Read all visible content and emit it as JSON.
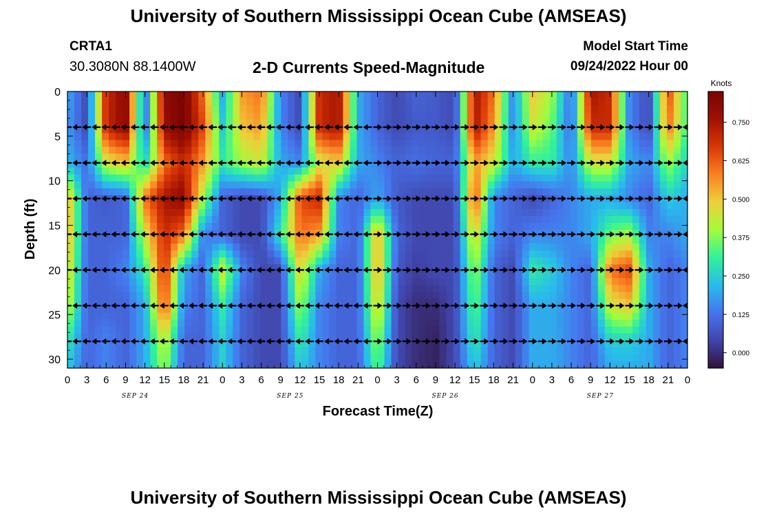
{
  "header": {
    "main_title": "University of Southern Mississippi Ocean Cube (AMSEAS)",
    "station_id": "CRTA1",
    "station_coords": "30.3080N  88.1400W",
    "plot_title": "2-D Currents Speed-Magnitude",
    "model_start_label": "Model Start Time",
    "model_start_value": "09/24/2022 Hour 00"
  },
  "footer": {
    "repeated_title": "University of Southern Mississippi Ocean Cube (AMSEAS)"
  },
  "chart_data": {
    "type": "heatmap",
    "title": "2-D Currents Speed-Magnitude",
    "xlabel": "Forecast Time(Z)",
    "ylabel": "Depth (ft)",
    "x_range_hours": [
      0,
      96
    ],
    "x_tick_labels": [
      "0",
      "3",
      "6",
      "9",
      "12",
      "15",
      "18",
      "21",
      "0",
      "3",
      "6",
      "9",
      "12",
      "15",
      "18",
      "21",
      "0",
      "3",
      "6",
      "9",
      "12",
      "15",
      "18",
      "21",
      "0",
      "3",
      "6",
      "9",
      "12",
      "15",
      "18",
      "21",
      "0"
    ],
    "date_labels": [
      {
        "label": "SEP 24",
        "hour": 10.5
      },
      {
        "label": "SEP 25",
        "hour": 34.5
      },
      {
        "label": "SEP 26",
        "hour": 58.5
      },
      {
        "label": "SEP 27",
        "hour": 82.5
      }
    ],
    "y_range_ft": [
      0,
      31
    ],
    "y_tick_labels": [
      "0",
      "5",
      "10",
      "15",
      "20",
      "25",
      "30"
    ],
    "y_ticks": [
      0,
      5,
      10,
      15,
      20,
      25,
      30
    ],
    "colorbar": {
      "title": "Knots",
      "range": [
        -0.05,
        0.85
      ],
      "tick_labels": [
        "0.750",
        "0.625",
        "0.500",
        "0.375",
        "0.250",
        "0.125",
        "0.000"
      ],
      "tick_values": [
        0.75,
        0.625,
        0.5,
        0.375,
        0.25,
        0.125,
        0.0
      ]
    },
    "speed_hours": [
      0,
      3,
      6,
      9,
      12,
      15,
      18,
      21,
      24,
      27,
      30,
      33,
      36,
      39,
      42,
      45,
      48,
      51,
      54,
      57,
      60,
      63,
      66,
      69,
      72,
      75,
      78,
      81,
      84,
      87,
      90,
      93,
      96
    ],
    "speed_depths": [
      0,
      4,
      8,
      12,
      16,
      20,
      24,
      28,
      31
    ],
    "speed_knots": [
      [
        0.2,
        0.05,
        0.7,
        0.8,
        0.1,
        0.8,
        0.85,
        0.6,
        0.2,
        0.55,
        0.6,
        0.15,
        0.05,
        0.7,
        0.75,
        0.2,
        0.1,
        0.05,
        0.1,
        0.08,
        0.05,
        0.75,
        0.6,
        0.15,
        0.5,
        0.4,
        0.1,
        0.75,
        0.7,
        0.15,
        0.05,
        0.65,
        0.3
      ],
      [
        0.18,
        0.05,
        0.7,
        0.8,
        0.1,
        0.78,
        0.85,
        0.65,
        0.25,
        0.5,
        0.55,
        0.15,
        0.05,
        0.7,
        0.75,
        0.2,
        0.1,
        0.05,
        0.08,
        0.08,
        0.05,
        0.75,
        0.55,
        0.15,
        0.45,
        0.35,
        0.1,
        0.7,
        0.7,
        0.15,
        0.05,
        0.6,
        0.3
      ],
      [
        0.22,
        0.12,
        0.45,
        0.5,
        0.25,
        0.6,
        0.7,
        0.55,
        0.3,
        0.4,
        0.45,
        0.2,
        0.15,
        0.45,
        0.5,
        0.2,
        0.15,
        0.1,
        0.12,
        0.1,
        0.1,
        0.55,
        0.45,
        0.2,
        0.3,
        0.3,
        0.15,
        0.45,
        0.45,
        0.2,
        0.15,
        0.4,
        0.25
      ],
      [
        0.55,
        0.1,
        0.08,
        0.1,
        0.6,
        0.75,
        0.8,
        0.4,
        0.1,
        0.05,
        0.05,
        0.2,
        0.65,
        0.7,
        0.15,
        0.1,
        0.2,
        0.08,
        0.05,
        0.05,
        0.05,
        0.65,
        0.15,
        0.1,
        0.05,
        0.1,
        0.15,
        0.2,
        0.2,
        0.15,
        0.1,
        0.25,
        0.2
      ],
      [
        0.55,
        0.1,
        0.1,
        0.1,
        0.45,
        0.7,
        0.6,
        0.15,
        0.1,
        0.05,
        0.05,
        0.3,
        0.6,
        0.55,
        0.15,
        0.1,
        0.55,
        0.1,
        0.05,
        0.05,
        0.05,
        0.5,
        0.15,
        0.1,
        0.15,
        0.15,
        0.15,
        0.2,
        0.35,
        0.4,
        0.15,
        0.15,
        0.2
      ],
      [
        0.5,
        0.1,
        0.1,
        0.15,
        0.3,
        0.7,
        0.2,
        0.1,
        0.45,
        0.15,
        0.05,
        0.05,
        0.5,
        0.2,
        0.1,
        0.1,
        0.55,
        0.08,
        0.03,
        0.05,
        0.05,
        0.4,
        0.1,
        0.05,
        0.3,
        0.25,
        0.15,
        0.1,
        0.6,
        0.65,
        0.2,
        0.1,
        0.15
      ],
      [
        0.45,
        0.1,
        0.1,
        0.1,
        0.2,
        0.65,
        0.15,
        0.1,
        0.3,
        0.1,
        0.05,
        0.05,
        0.4,
        0.15,
        0.1,
        0.1,
        0.5,
        0.05,
        0.0,
        0.0,
        0.05,
        0.35,
        0.1,
        0.05,
        0.2,
        0.2,
        0.15,
        0.1,
        0.45,
        0.5,
        0.2,
        0.1,
        0.15
      ],
      [
        0.3,
        0.1,
        0.15,
        0.1,
        0.2,
        0.45,
        0.1,
        0.1,
        0.25,
        0.1,
        0.05,
        0.05,
        0.3,
        0.15,
        0.1,
        0.1,
        0.4,
        0.05,
        0.0,
        -0.02,
        0.05,
        0.3,
        0.1,
        0.05,
        0.2,
        0.2,
        0.15,
        0.1,
        0.25,
        0.25,
        0.2,
        0.1,
        0.15
      ],
      [
        0.25,
        0.1,
        0.15,
        0.1,
        0.2,
        0.4,
        0.1,
        0.1,
        0.25,
        0.1,
        0.05,
        0.05,
        0.25,
        0.15,
        0.1,
        0.1,
        0.35,
        0.05,
        0.0,
        -0.02,
        0.05,
        0.25,
        0.1,
        0.05,
        0.2,
        0.2,
        0.15,
        0.1,
        0.2,
        0.2,
        0.2,
        0.1,
        0.15
      ]
    ],
    "arrow_depths": [
      4,
      8,
      12,
      16,
      20,
      24,
      28
    ],
    "arrow_hours": [
      0,
      1.5,
      3,
      4.5,
      6,
      7.5,
      9,
      10.5,
      12,
      13.5,
      15,
      16.5,
      18,
      19.5,
      21,
      22.5,
      24,
      25.5,
      27,
      28.5,
      30,
      31.5,
      33,
      34.5,
      36,
      37.5,
      39,
      40.5,
      42,
      43.5,
      45,
      46.5,
      48,
      49.5,
      51,
      52.5,
      54,
      55.5,
      57,
      58.5,
      60,
      61.5,
      63,
      64.5,
      66,
      67.5,
      69,
      70.5,
      72,
      73.5,
      75,
      76.5,
      78,
      79.5,
      81,
      82.5,
      84,
      85.5,
      87,
      88.5,
      90,
      91.5,
      93,
      94.5,
      96
    ],
    "arrow_directions": "mostly west-pointing (left) on SEP 24-25, mostly east-pointing (right) on SEP 26-27"
  }
}
